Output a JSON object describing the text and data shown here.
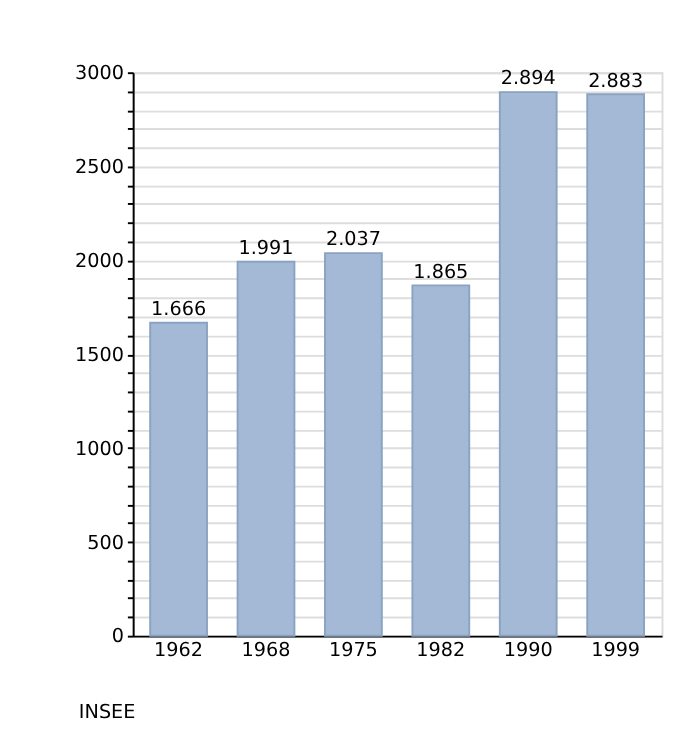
{
  "chart_data": {
    "type": "bar",
    "categories": [
      "1962",
      "1968",
      "1975",
      "1982",
      "1990",
      "1999"
    ],
    "values": [
      1666,
      1991,
      2037,
      1865,
      2894,
      2883
    ],
    "value_labels": [
      "1.666",
      "1.991",
      "2.037",
      "1.865",
      "2.894",
      "2.883"
    ],
    "color": "#a3b9d5",
    "ylim": [
      0,
      3000
    ],
    "yticks": [
      0,
      {
        "value": 100,
        "label": null
      },
      {
        "value": 200,
        "label": null
      },
      {
        "value": 300,
        "label": null
      },
      {
        "value": 400,
        "label": null
      },
      500,
      {
        "value": 600,
        "label": null
      },
      {
        "value": 700,
        "label": null
      },
      {
        "value": 800,
        "label": null
      },
      {
        "value": 900,
        "label": null
      },
      1000,
      {
        "value": 1100,
        "label": null
      },
      {
        "value": 1200,
        "label": null
      },
      {
        "value": 1300,
        "label": null
      },
      {
        "value": 1400,
        "label": null
      },
      1500,
      {
        "value": 1600,
        "label": null
      },
      {
        "value": 1700,
        "label": null
      },
      {
        "value": 1800,
        "label": null
      },
      {
        "value": 1900,
        "label": null
      },
      2000,
      {
        "value": 2100,
        "label": null
      },
      {
        "value": 2200,
        "label": null
      },
      {
        "value": 2300,
        "label": null
      },
      {
        "value": 2400,
        "label": null
      },
      2500,
      {
        "value": 2600,
        "label": null
      },
      {
        "value": 2700,
        "label": null
      },
      {
        "value": 2800,
        "label": null
      },
      {
        "value": 2900,
        "label": null
      },
      3000
    ],
    "grid": "y",
    "annotations": [
      "INSEE"
    ]
  }
}
